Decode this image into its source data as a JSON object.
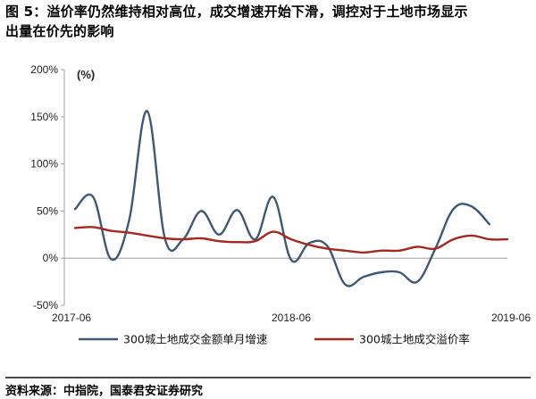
{
  "title_lines": [
    "图 5：溢价率仍然维持相对高位，成交增速开始下滑，调控对于土地市场显示",
    "出量在价先的影响"
  ],
  "source": "资料来源：中指院，国泰君安证券研究",
  "colors": {
    "series_growth": "#3f5873",
    "series_premium": "#9e2a22",
    "axis": "#a0a0a0",
    "footer_rule": "#4a4a4a"
  },
  "chart_data": {
    "type": "line",
    "unit_label": "(%)",
    "ylim": [
      -50,
      200
    ],
    "yticks": [
      -50,
      0,
      50,
      100,
      150,
      200
    ],
    "ytick_labels": [
      "-50%",
      "0%",
      "50%",
      "100%",
      "150%",
      "200%"
    ],
    "xlim": [
      "2017-06",
      "2019-06"
    ],
    "xtick_labels": [
      "2017-06",
      "2018-06",
      "2019-06"
    ],
    "x": [
      "2017-06",
      "2017-07",
      "2017-08",
      "2017-09",
      "2017-10",
      "2017-11",
      "2017-12",
      "2018-01",
      "2018-02",
      "2018-03",
      "2018-04",
      "2018-05",
      "2018-06",
      "2018-07",
      "2018-08",
      "2018-09",
      "2018-10",
      "2018-11",
      "2018-12",
      "2019-01",
      "2019-02",
      "2019-03",
      "2019-04",
      "2019-05",
      "2019-06"
    ],
    "legend_position": "bottom",
    "series": [
      {
        "name": "300城土地成交金额单月增速",
        "values": [
          52,
          65,
          -1,
          40,
          156,
          20,
          20,
          50,
          25,
          51,
          20,
          65,
          -2,
          16,
          13,
          -28,
          -20,
          -15,
          -15,
          -25,
          10,
          52,
          55,
          36,
          null
        ]
      },
      {
        "name": "300城土地成交溢价率",
        "values": [
          32,
          33,
          29,
          27,
          24,
          21,
          20,
          21,
          18,
          17,
          18,
          28,
          20,
          14,
          10,
          8,
          6,
          8,
          8,
          12,
          10,
          20,
          24,
          20,
          20
        ]
      }
    ]
  }
}
